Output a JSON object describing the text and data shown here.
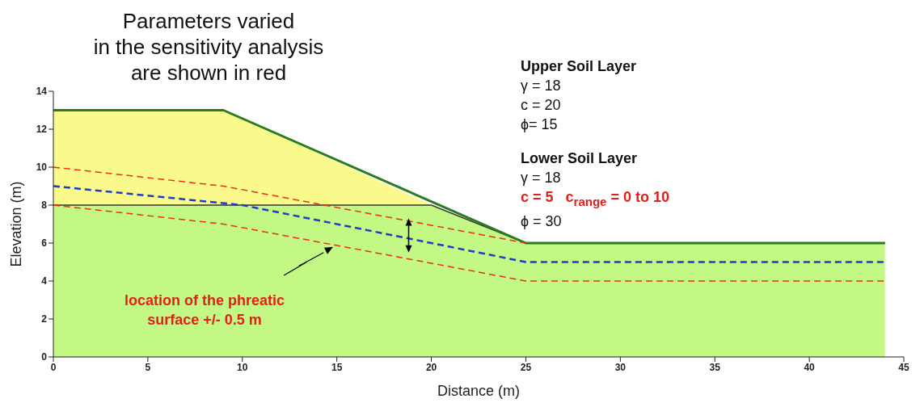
{
  "chart_data": {
    "type": "area",
    "title": "Parameters varied in the sensitivity analysis are shown in red",
    "xlabel": "Distance (m)",
    "ylabel": "Elevation (m)",
    "xlim": [
      0,
      45
    ],
    "xticks": [
      0,
      5,
      10,
      15,
      20,
      25,
      30,
      35,
      40,
      45
    ],
    "ylim": [
      0,
      14
    ],
    "yticks": [
      0,
      2,
      4,
      6,
      8,
      10,
      12,
      14
    ],
    "series": [
      {
        "color": "#fafa8c",
        "x": [
          0,
          9,
          20
        ],
        "values": [
          13,
          13,
          8
        ]
      },
      {
        "color": "#c4f884",
        "x": [
          0,
          20,
          25,
          44
        ],
        "values": [
          8,
          8,
          6,
          6
        ]
      },
      {
        "type": "line",
        "color": "#2a7a1e",
        "x": [
          0,
          9,
          25,
          44
        ],
        "values": [
          13,
          13,
          6,
          6
        ],
        "line_style": "solid"
      },
      {
        "type": "line",
        "color": "#e83020",
        "x": [
          0,
          9,
          25
        ],
        "values": [
          10,
          9,
          6
        ],
        "line_style": "dashed"
      },
      {
        "type": "line",
        "color": "#e83020",
        "x": [
          0,
          9,
          25,
          44
        ],
        "values": [
          8,
          7,
          4,
          4
        ],
        "line_style": "dashed"
      },
      {
        "type": "line",
        "color": "#1e3cc8",
        "x": [
          0,
          10,
          25,
          44
        ],
        "values": [
          9,
          8,
          5,
          5
        ],
        "line_style": "dashed"
      }
    ],
    "annotations": [
      "Upper Soil Layer",
      "γ = 18",
      "c = 20",
      "ϕ= 15",
      "Lower Soil Layer",
      "γ = 18",
      "c = 5   c$_{range}$ = 0 to 10",
      "ϕ = 30",
      "location of the phreatic surface +/- 0.5 m"
    ]
  }
}
